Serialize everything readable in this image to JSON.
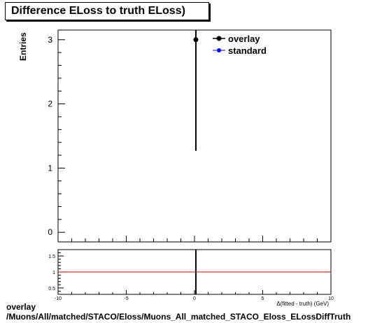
{
  "chart_data": [
    {
      "type": "scatter",
      "title": "Difference ELoss to truth ELoss)",
      "ylabel": "Entries",
      "xlabel": "Δ(fitted - truth) (GeV)",
      "xlim": [
        -10,
        10
      ],
      "ylim": [
        -0.15,
        3.15
      ],
      "y_ticks": [
        0,
        1,
        2,
        3
      ],
      "legend": {
        "placement": "top-right",
        "entries": [
          "overlay",
          "standard"
        ]
      },
      "legend_colors": {
        "overlay": "#000000",
        "standard": "#0000ff"
      },
      "series": [
        {
          "name": "overlay",
          "color": "#000000",
          "points": [
            {
              "x": 0.1,
              "y": 3,
              "err_low": 1.73,
              "err_high": 2.4
            }
          ]
        },
        {
          "name": "standard",
          "color": "#0000ff",
          "points": []
        }
      ]
    },
    {
      "type": "scatter",
      "title": "",
      "xlim": [
        -10,
        10
      ],
      "ylim": [
        0.3,
        1.7
      ],
      "x_ticks": [
        -10,
        -5,
        0,
        5,
        10
      ],
      "y_ticks": [
        0.5,
        1,
        1.5
      ],
      "reference_line": {
        "y": 1,
        "color": "#cc0000"
      },
      "series": [
        {
          "name": "",
          "color": "#000000",
          "points": [
            {
              "x": 0.1,
              "y": 1,
              "err_low": 0.7,
              "err_high": 0.7
            }
          ]
        }
      ]
    }
  ],
  "caption": {
    "line1": "overlay",
    "line2": "/Muons/All/matched/STACO/Eloss/Muons_All_matched_STACO_Eloss_ELossDiffTruth"
  }
}
